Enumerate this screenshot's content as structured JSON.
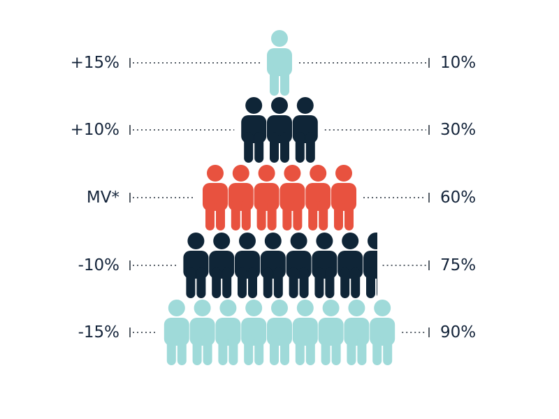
{
  "chart_data": {
    "type": "pictogram",
    "title": "",
    "colors": {
      "teal": "#9fdad9",
      "navy": "#0f2537",
      "red": "#e8523f"
    },
    "rows": [
      {
        "left_label": "+15%",
        "right_label": "10%",
        "figures": 1,
        "color": "#9fdad9"
      },
      {
        "left_label": "+10%",
        "right_label": "30%",
        "figures": 3,
        "color": "#0f2537"
      },
      {
        "left_label": "MV*",
        "right_label": "60%",
        "figures": 6,
        "color": "#e8523f"
      },
      {
        "left_label": "-10%",
        "right_label": "75%",
        "figures": 7.5,
        "color": "#0f2537"
      },
      {
        "left_label": "-15%",
        "right_label": "90%",
        "figures": 9,
        "color": "#9fdad9"
      }
    ]
  }
}
